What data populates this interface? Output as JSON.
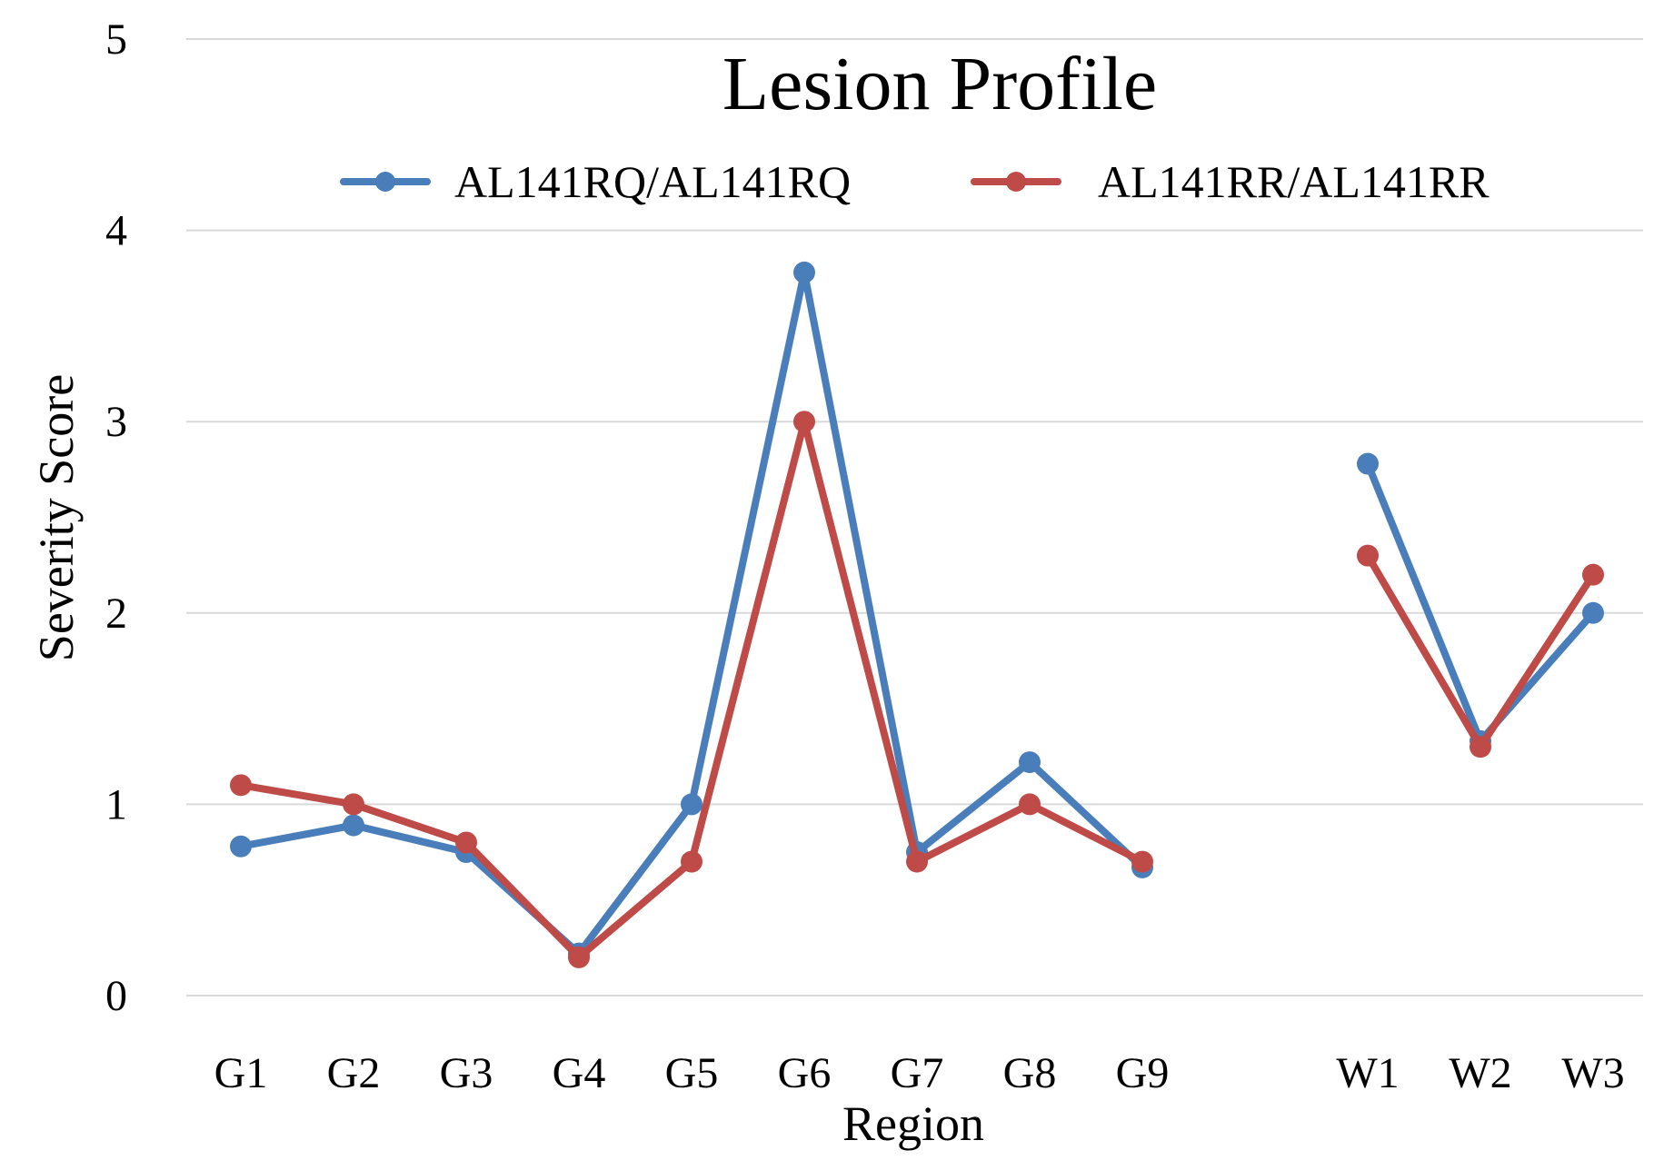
{
  "chart_data": {
    "type": "line",
    "title": "Lesion Profile",
    "xlabel": "Region",
    "ylabel": "Severity Score",
    "ylim": [
      0,
      5
    ],
    "yticks": [
      "0",
      "1",
      "2",
      "3",
      "4",
      "5"
    ],
    "grid": true,
    "legend_position": "top",
    "categories": [
      "G1",
      "G2",
      "G3",
      "G4",
      "G5",
      "G6",
      "G7",
      "G8",
      "G9",
      "",
      "W1",
      "W2",
      "W3"
    ],
    "series": [
      {
        "name": "AL141RQ/AL141RQ",
        "color": "#4a7ebb",
        "values": [
          0.78,
          0.89,
          0.75,
          0.22,
          1.0,
          3.78,
          0.75,
          1.22,
          0.67,
          null,
          2.78,
          1.33,
          2.0
        ]
      },
      {
        "name": "AL141RR/AL141RR",
        "color": "#be4b48",
        "values": [
          1.1,
          1.0,
          0.8,
          0.2,
          0.7,
          3.0,
          0.7,
          1.0,
          0.7,
          null,
          2.3,
          1.3,
          2.2
        ]
      }
    ]
  }
}
